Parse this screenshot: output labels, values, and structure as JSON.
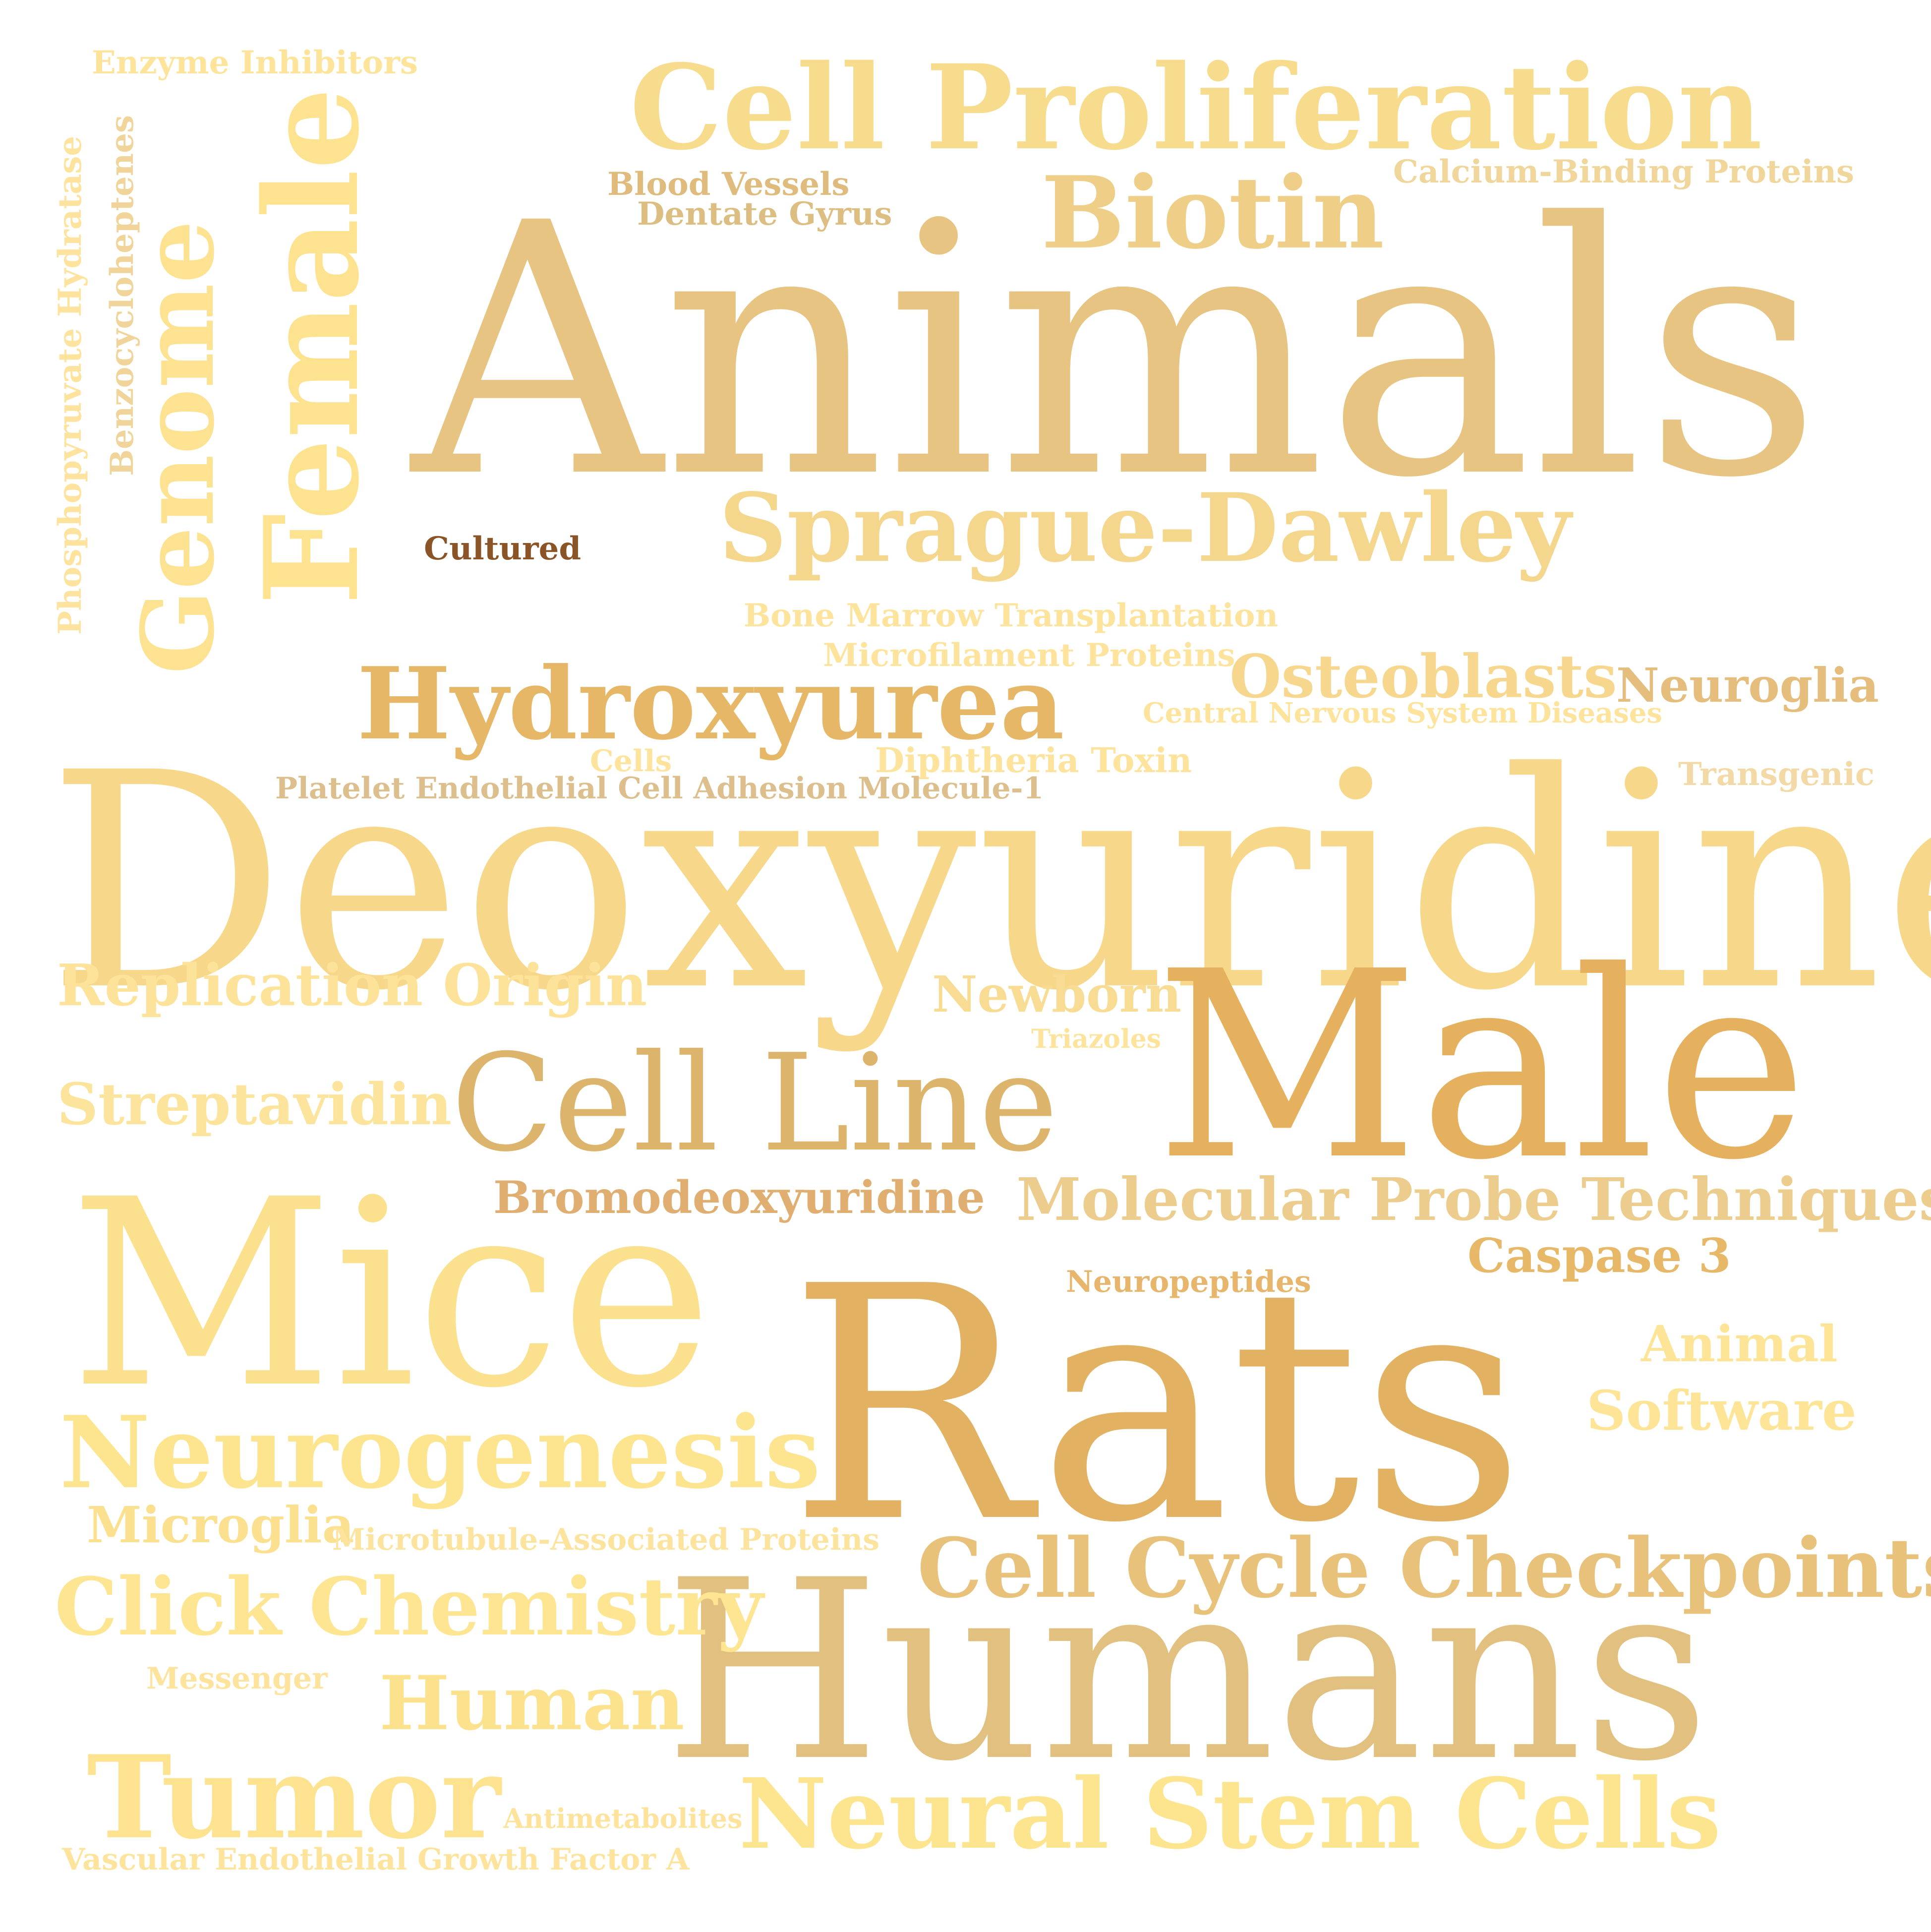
{
  "words": [
    {
      "key": "animals",
      "text": "Animals",
      "color": "#e7c482"
    },
    {
      "key": "deoxyuridine",
      "text": "Deoxyuridine",
      "color": "#f7d88a"
    },
    {
      "key": "male",
      "text": "Male",
      "color": "#e6b15e"
    },
    {
      "key": "rats",
      "text": "Rats",
      "color": "#e2b262"
    },
    {
      "key": "mice",
      "text": "Mice",
      "color": "#fbe18e"
    },
    {
      "key": "humans",
      "text": "Humans",
      "color": "#e2c07f"
    },
    {
      "key": "cell_proliferation",
      "text": "Cell Proliferation",
      "color": "#f7dc8e"
    },
    {
      "key": "female",
      "text": "Female",
      "color": "#fde28f"
    },
    {
      "key": "genome",
      "text": "Genome",
      "color": "#fde391"
    },
    {
      "key": "biotin",
      "text": "Biotin",
      "color": "#efcf88"
    },
    {
      "key": "sprague_dawley",
      "text": "Sprague-Dawley",
      "color": "#f5d68d"
    },
    {
      "key": "hydroxyurea",
      "text": "Hydroxyurea",
      "color": "#e6b767"
    },
    {
      "key": "cell_line",
      "text": "Cell Line",
      "color": "#ddb46c"
    },
    {
      "key": "neurogenesis",
      "text": "Neurogenesis",
      "color": "#fde48e"
    },
    {
      "key": "cell_cycle_checkpoints",
      "text": "Cell Cycle Checkpoints",
      "color": "#e8c27b"
    },
    {
      "key": "neural_stem_cells",
      "text": "Neural Stem Cells",
      "color": "#fde58f"
    },
    {
      "key": "tumor",
      "text": "Tumor",
      "color": "#fde390"
    },
    {
      "key": "click_chemistry",
      "text": "Click Chemistry",
      "color": "#fde591"
    },
    {
      "key": "human",
      "text": "Human",
      "color": "#fde28d"
    },
    {
      "key": "molecular_probe_techniques",
      "text": "Molecular Probe Techniques",
      "color": "#eccd8e"
    },
    {
      "key": "replication_origin",
      "text": "Replication Origin",
      "color": "#fde39a"
    },
    {
      "key": "streptavidin",
      "text": "Streptavidin",
      "color": "#fde49c"
    },
    {
      "key": "newborn",
      "text": "Newborn",
      "color": "#f8dc93"
    },
    {
      "key": "bromodeoxyuridine",
      "text": "Bromodeoxyuridine",
      "color": "#dfae70"
    },
    {
      "key": "osteoblasts",
      "text": "Osteoblasts",
      "color": "#f6d78d"
    },
    {
      "key": "neuroglia",
      "text": "Neuroglia",
      "color": "#e5be7d"
    },
    {
      "key": "microglia",
      "text": "Microglia",
      "color": "#fbe08f"
    },
    {
      "key": "software",
      "text": "Software",
      "color": "#fde497"
    },
    {
      "key": "animal",
      "text": "Animal",
      "color": "#fde497"
    },
    {
      "key": "caspase_3",
      "text": "Caspase 3",
      "color": "#e7b868"
    },
    {
      "key": "enzyme_inhibitors",
      "text": "Enzyme Inhibitors",
      "color": "#fde49a"
    },
    {
      "key": "blood_vessels",
      "text": "Blood Vessels",
      "color": "#e0bb7e"
    },
    {
      "key": "dentate_gyrus",
      "text": "Dentate Gyrus",
      "color": "#dcbd82"
    },
    {
      "key": "calcium_binding_proteins",
      "text": "Calcium-Binding Proteins",
      "color": "#f0d69a"
    },
    {
      "key": "cultured",
      "text": "Cultured",
      "color": "#8a5426"
    },
    {
      "key": "bone_marrow_transplantation",
      "text": "Bone Marrow Transplantation",
      "color": "#fde39c"
    },
    {
      "key": "microfilament_proteins",
      "text": "Microfilament Proteins",
      "color": "#fde39c"
    },
    {
      "key": "central_nervous_system_diseases",
      "text": "Central Nervous System Diseases",
      "color": "#fde39c"
    },
    {
      "key": "cells",
      "text": "Cells",
      "color": "#fde39c"
    },
    {
      "key": "diphtheria_toxin",
      "text": "Diphtheria Toxin",
      "color": "#fde39c"
    },
    {
      "key": "platelet_endothelial",
      "text": "Platelet Endothelial Cell Adhesion Molecule-1",
      "color": "#ddbf8d"
    },
    {
      "key": "transgenic",
      "text": "Transgenic",
      "color": "#f3d9a6"
    },
    {
      "key": "triazoles",
      "text": "Triazoles",
      "color": "#fde39c"
    },
    {
      "key": "neuropeptides",
      "text": "Neuropeptides",
      "color": "#e7b56c"
    },
    {
      "key": "microtubule_associated_proteins",
      "text": "Microtubule-Associated Proteins",
      "color": "#fde49e"
    },
    {
      "key": "messenger",
      "text": "Messenger",
      "color": "#fde39c"
    },
    {
      "key": "antimetabolites",
      "text": "Antimetabolites",
      "color": "#fde39c"
    },
    {
      "key": "vascular_endothelial",
      "text": "Vascular Endothelial Growth Factor A",
      "color": "#fde39c"
    },
    {
      "key": "phosphopyruvate_hydratase",
      "text": "Phosphopyruvate Hydratase",
      "color": "#fde39e"
    },
    {
      "key": "benzocycloheptenes",
      "text": "Benzocycloheptenes",
      "color": "#f0d49a"
    }
  ]
}
